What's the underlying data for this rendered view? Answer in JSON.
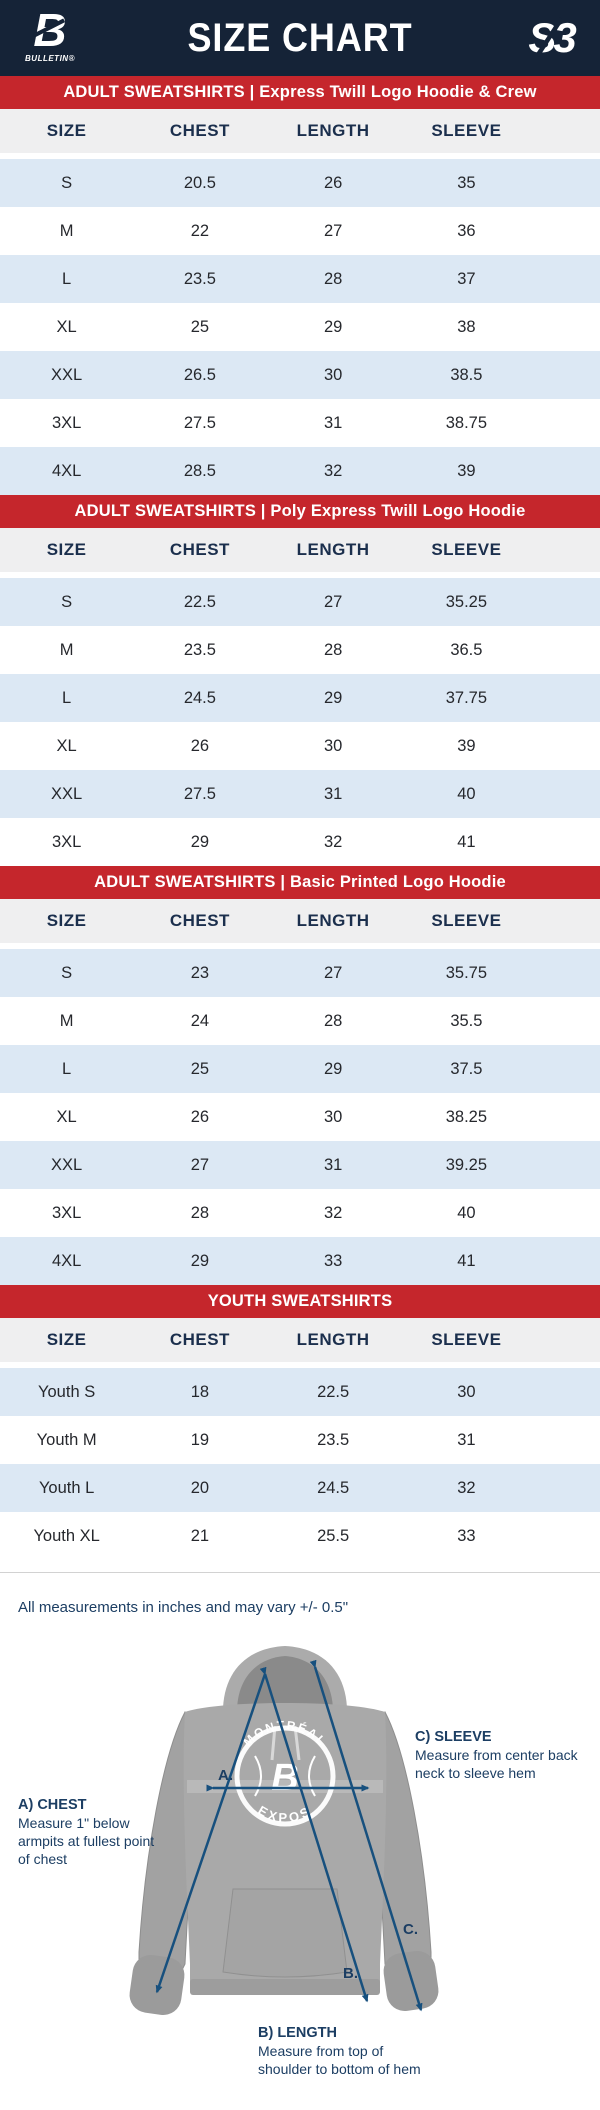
{
  "header": {
    "title": "SIZE CHART",
    "brand_left_mark": "B",
    "brand_left_name": "BULLETIN®",
    "brand_right_mark": "S3"
  },
  "columns": [
    "SIZE",
    "CHEST",
    "LENGTH",
    "SLEEVE"
  ],
  "sections": [
    {
      "title": "ADULT SWEATSHIRTS | Express Twill Logo Hoodie & Crew",
      "rows": [
        [
          "S",
          "20.5",
          "26",
          "35"
        ],
        [
          "M",
          "22",
          "27",
          "36"
        ],
        [
          "L",
          "23.5",
          "28",
          "37"
        ],
        [
          "XL",
          "25",
          "29",
          "38"
        ],
        [
          "XXL",
          "26.5",
          "30",
          "38.5"
        ],
        [
          "3XL",
          "27.5",
          "31",
          "38.75"
        ],
        [
          "4XL",
          "28.5",
          "32",
          "39"
        ]
      ]
    },
    {
      "title": "ADULT SWEATSHIRTS | Poly Express Twill Logo Hoodie",
      "rows": [
        [
          "S",
          "22.5",
          "27",
          "35.25"
        ],
        [
          "M",
          "23.5",
          "28",
          "36.5"
        ],
        [
          "L",
          "24.5",
          "29",
          "37.75"
        ],
        [
          "XL",
          "26",
          "30",
          "39"
        ],
        [
          "XXL",
          "27.5",
          "31",
          "40"
        ],
        [
          "3XL",
          "29",
          "32",
          "41"
        ]
      ]
    },
    {
      "title": "ADULT SWEATSHIRTS | Basic Printed Logo Hoodie",
      "rows": [
        [
          "S",
          "23",
          "27",
          "35.75"
        ],
        [
          "M",
          "24",
          "28",
          "35.5"
        ],
        [
          "L",
          "25",
          "29",
          "37.5"
        ],
        [
          "XL",
          "26",
          "30",
          "38.25"
        ],
        [
          "XXL",
          "27",
          "31",
          "39.25"
        ],
        [
          "3XL",
          "28",
          "32",
          "40"
        ],
        [
          "4XL",
          "29",
          "33",
          "41"
        ]
      ]
    },
    {
      "title": "YOUTH SWEATSHIRTS",
      "rows": [
        [
          "Youth S",
          "18",
          "22.5",
          "30"
        ],
        [
          "Youth M",
          "19",
          "23.5",
          "31"
        ],
        [
          "Youth L",
          "20",
          "24.5",
          "32"
        ],
        [
          "Youth XL",
          "21",
          "25.5",
          "33"
        ]
      ]
    }
  ],
  "note": "All measurements in inches and may vary +/- 0.5\"",
  "diagram": {
    "badge_top": "MONTRÉAL",
    "badge_bottom": "EXPOS",
    "badge_center": "B",
    "marker_a": "A.",
    "marker_b": "B.",
    "marker_c": "C.",
    "labels": {
      "chest": {
        "title": "A) CHEST",
        "desc": "Measure 1\" below armpits at fullest point of chest"
      },
      "length": {
        "title": "B) LENGTH",
        "desc": "Measure from top of shoulder to bottom of hem"
      },
      "sleeve": {
        "title": "C) SLEEVE",
        "desc": "Measure from center back neck to sleeve hem"
      }
    }
  },
  "colors": {
    "navy_bg": "#152337",
    "red_band": "#c5262c",
    "row_blue": "#dce8f4",
    "header_gray": "#efeff0",
    "header_text_navy": "#1b2f4d",
    "note_navy": "#1c3e63",
    "arrow_navy": "#17507e",
    "hoodie_gray": "#a9a9a9"
  }
}
